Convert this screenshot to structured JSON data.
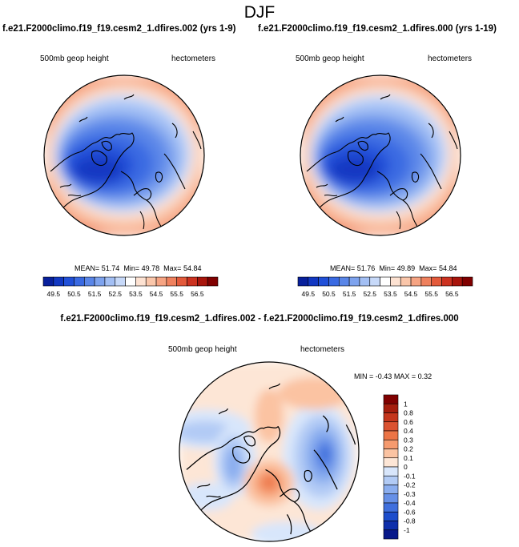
{
  "title": "DJF",
  "panels": [
    {
      "case_title": "f.e21.F2000climo.f19_f19.cesm2_1.dfires.002 (yrs 1-9)",
      "variable": "500mb geop height",
      "units": "hectometers",
      "stats": {
        "mean_label": "MEAN=",
        "mean": "51.74",
        "min_label": "Min=",
        "min": "49.78",
        "max_label": "Max=",
        "max": "54.84"
      }
    },
    {
      "case_title": "f.e21.F2000climo.f19_f19.cesm2_1.dfires.000 (yrs 1-19)",
      "variable": "500mb geop height",
      "units": "hectometers",
      "stats": {
        "mean_label": "MEAN=",
        "mean": "51.76",
        "min_label": "Min=",
        "min": "49.89",
        "max_label": "Max=",
        "max": "54.84"
      }
    }
  ],
  "abs_colorbar": {
    "labels": [
      "49.5",
      "50.5",
      "51.5",
      "52.5",
      "53.5",
      "54.5",
      "55.5",
      "56.5"
    ],
    "colors": [
      "#08209c",
      "#1238c2",
      "#2150d8",
      "#3a6ae2",
      "#5a86e8",
      "#7ea3ee",
      "#a3bff4",
      "#c7d9f9",
      "#ffffff",
      "#fde2d2",
      "#fac6aa",
      "#f6a483",
      "#ef815e",
      "#e35a3b",
      "#cc3220",
      "#a8150c",
      "#800000"
    ]
  },
  "diff": {
    "title": "f.e21.F2000climo.f19_f19.cesm2_1.dfires.002 - f.e21.F2000climo.f19_f19.cesm2_1.dfires.000",
    "variable": "500mb geop height",
    "units": "hectometers",
    "stats": {
      "min_label": "MIN =",
      "min": "-0.43",
      "max_label": "MAX =",
      "max": "0.32"
    }
  },
  "diff_colorbar": {
    "labels": [
      "1",
      "0.8",
      "0.6",
      "0.4",
      "0.3",
      "0.2",
      "0.1",
      "0",
      "-0.1",
      "-0.2",
      "-0.3",
      "-0.4",
      "-0.6",
      "-0.8",
      "-1"
    ],
    "colors": [
      "#800000",
      "#a51d0d",
      "#c5361c",
      "#db5230",
      "#ec7446",
      "#f59a6e",
      "#fbc3a2",
      "#fde6d6",
      "#d8e6fb",
      "#b2cbf5",
      "#8baeef",
      "#6690e7",
      "#3f6fdd",
      "#1c4dcc",
      "#0e2fab",
      "#08198a"
    ]
  }
}
